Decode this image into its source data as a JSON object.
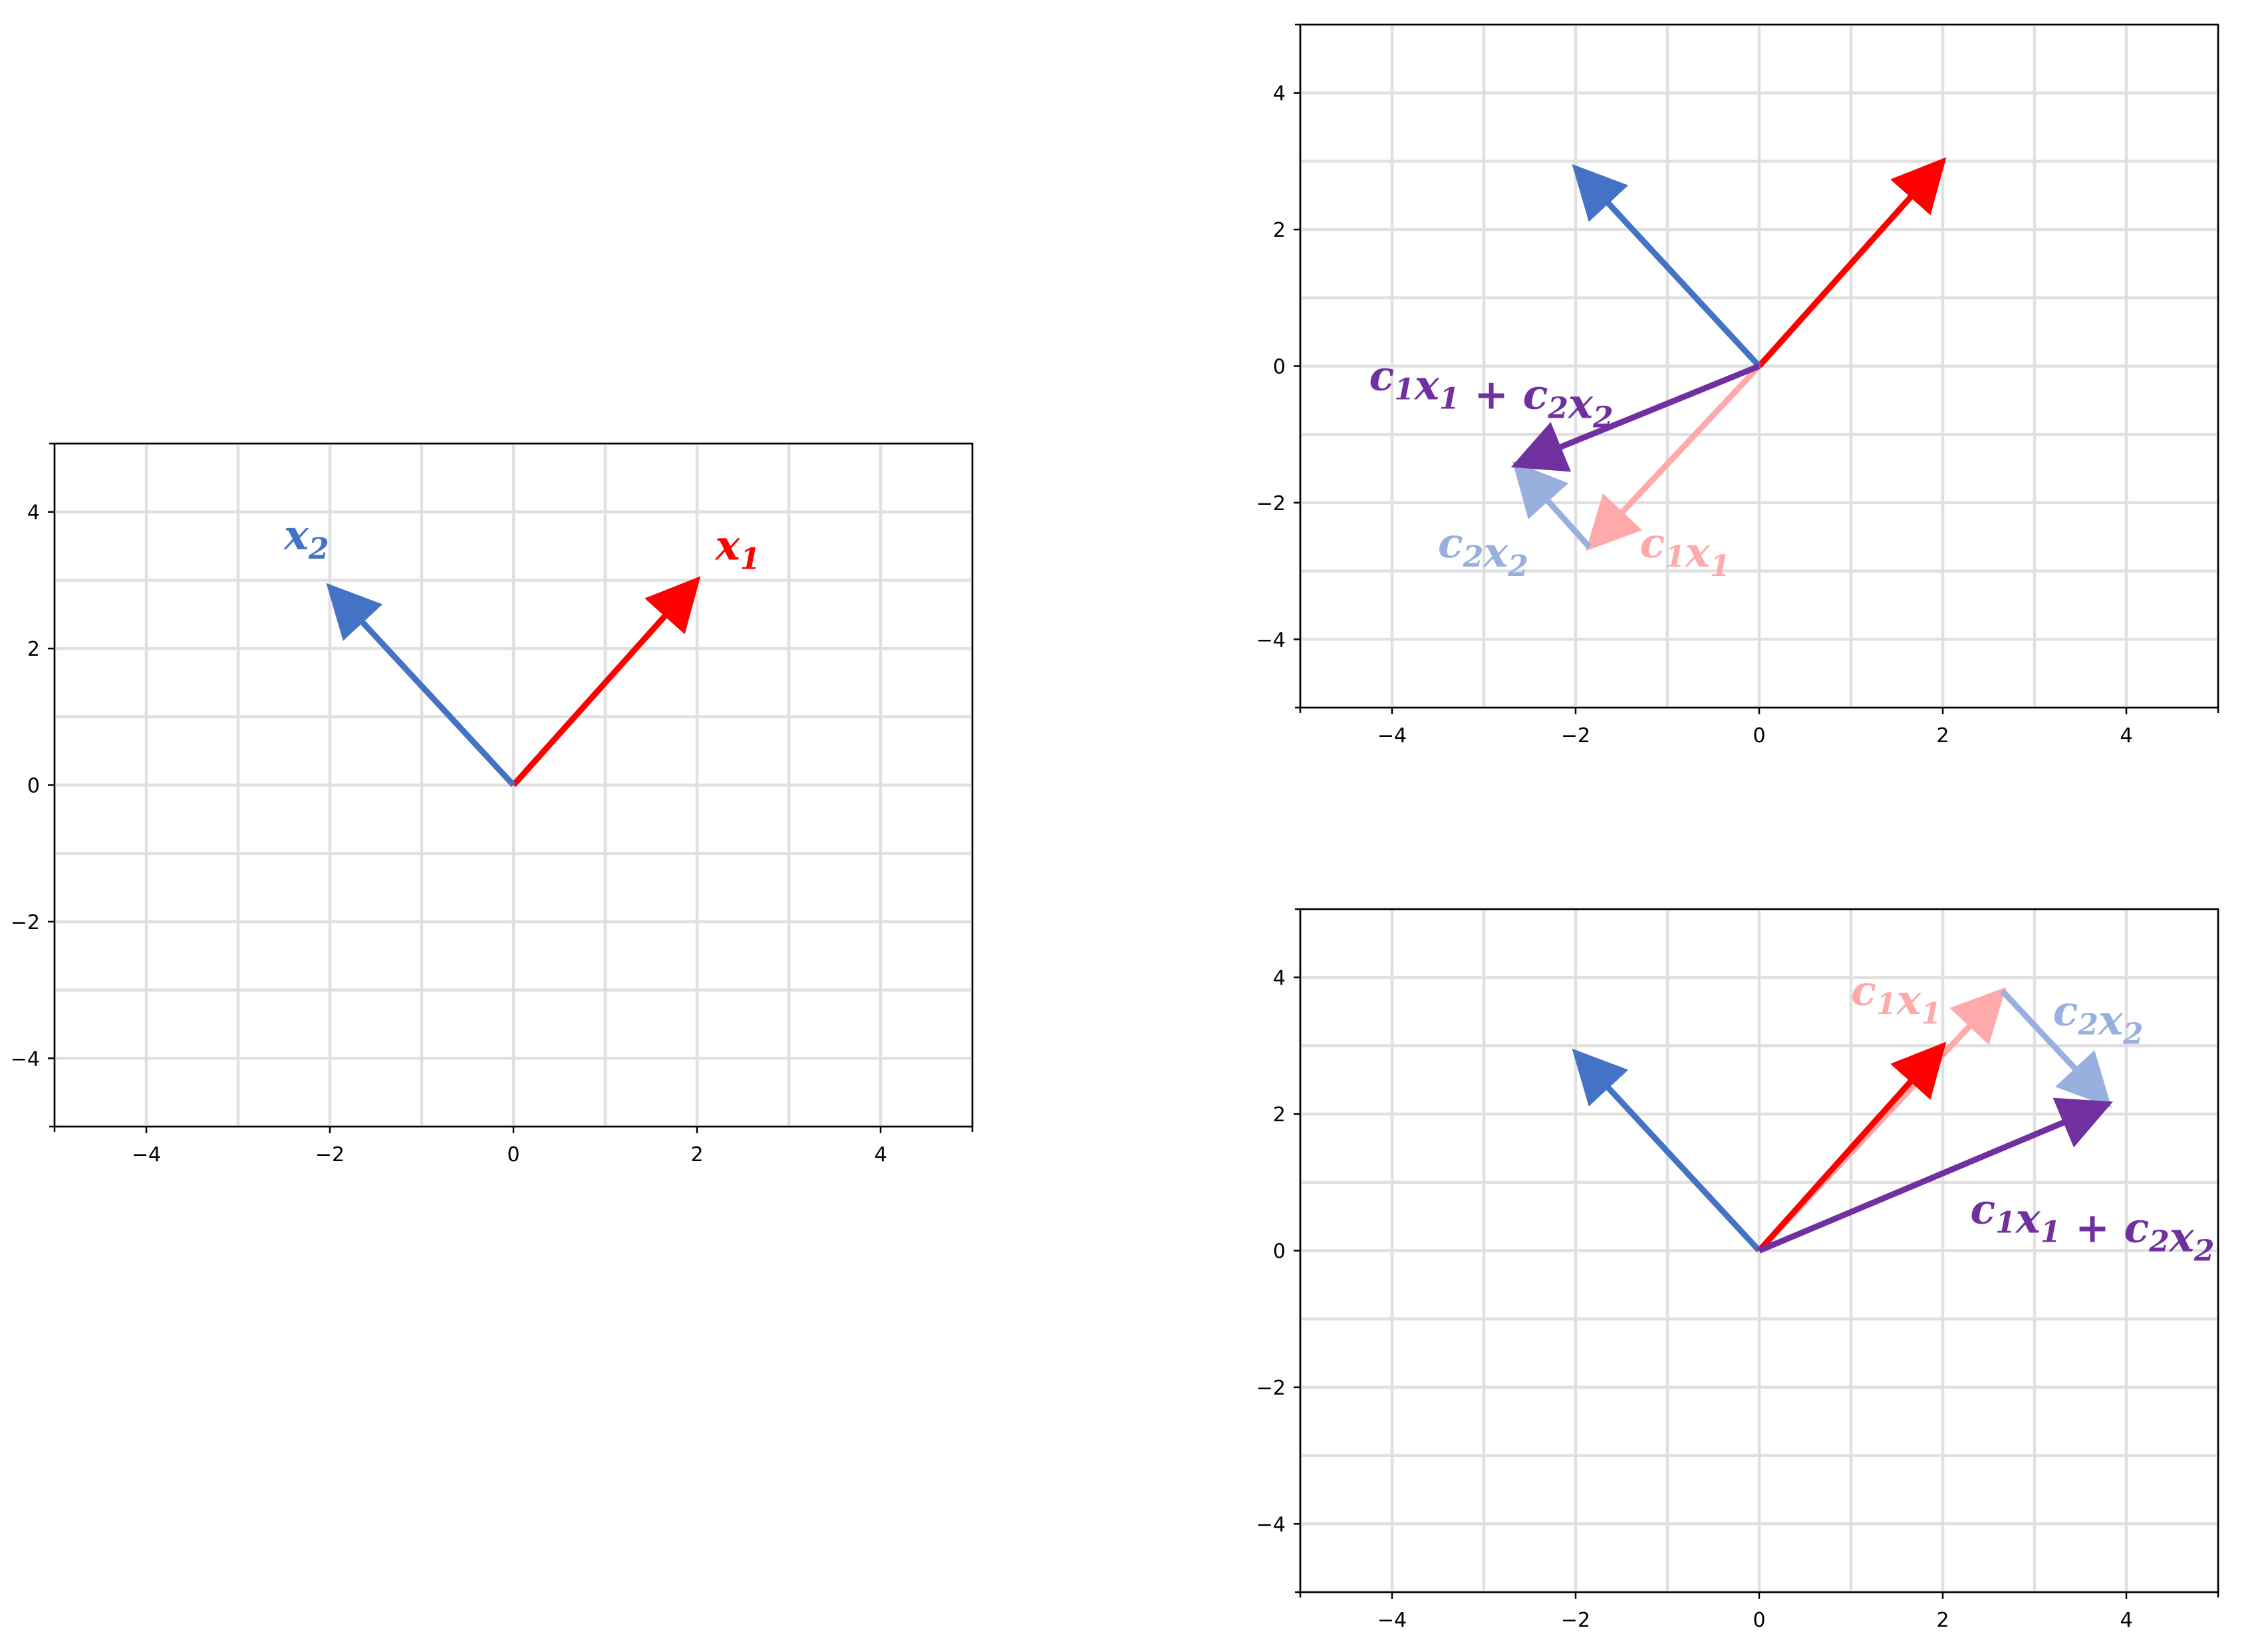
{
  "chart_data": [
    {
      "type": "vector",
      "xlim": [
        -5,
        5
      ],
      "ylim": [
        -5,
        5
      ],
      "xticks": [
        -4,
        -2,
        0,
        2,
        4
      ],
      "yticks": [
        -4,
        -2,
        0,
        2,
        4
      ],
      "grid": true,
      "vectors": [
        {
          "name": "x1",
          "from": [
            0,
            0
          ],
          "to": [
            2,
            3
          ],
          "color": "#ff0000"
        },
        {
          "name": "x2",
          "from": [
            0,
            0
          ],
          "to": [
            -2,
            2.9
          ],
          "color": "#4472c4"
        }
      ],
      "labels": [
        {
          "parts": [
            [
              "x",
              "base"
            ],
            [
              "1",
              "sub"
            ]
          ],
          "at": [
            2.2,
            3.3
          ],
          "color": "#ff0000"
        },
        {
          "parts": [
            [
              "x",
              "base"
            ],
            [
              "2",
              "sub"
            ]
          ],
          "at": [
            -2.5,
            3.45
          ],
          "color": "#4472c4"
        }
      ]
    },
    {
      "type": "vector",
      "xlim": [
        -5,
        5
      ],
      "ylim": [
        -5,
        5
      ],
      "xticks": [
        -4,
        -2,
        0,
        2,
        4
      ],
      "yticks": [
        -4,
        -2,
        0,
        2,
        4
      ],
      "grid": true,
      "vectors": [
        {
          "name": "x1",
          "from": [
            0,
            0
          ],
          "to": [
            2,
            3
          ],
          "color": "#ff0000"
        },
        {
          "name": "x2",
          "from": [
            0,
            0
          ],
          "to": [
            -2,
            2.9
          ],
          "color": "#4472c4"
        },
        {
          "name": "c1x1",
          "from": [
            0,
            0
          ],
          "to": [
            -1.85,
            -2.65
          ],
          "color": "#ffaaaa"
        },
        {
          "name": "c2x2",
          "from": [
            -1.85,
            -2.65
          ],
          "to": [
            -2.65,
            -1.45
          ],
          "color": "#99b0de"
        },
        {
          "name": "c1x1+c2x2",
          "from": [
            0,
            0
          ],
          "to": [
            -2.65,
            -1.45
          ],
          "color": "#7030a0"
        }
      ],
      "labels": [
        {
          "parts": [
            [
              "c",
              "base"
            ],
            [
              "1",
              "sub"
            ],
            [
              "x",
              "base"
            ],
            [
              "1",
              "sub"
            ],
            [
              " + ",
              "op"
            ],
            [
              "c",
              "base"
            ],
            [
              "2",
              "sub"
            ],
            [
              "x",
              "base"
            ],
            [
              "2",
              "sub"
            ]
          ],
          "at": [
            -4.25,
            -0.35
          ],
          "color": "#7030a0"
        },
        {
          "parts": [
            [
              "c",
              "base"
            ],
            [
              "2",
              "sub"
            ],
            [
              "x",
              "base"
            ],
            [
              "2",
              "sub"
            ]
          ],
          "at": [
            -3.5,
            -2.8
          ],
          "color": "#99b0de"
        },
        {
          "parts": [
            [
              "c",
              "base"
            ],
            [
              "1",
              "sub"
            ],
            [
              "x",
              "base"
            ],
            [
              "1",
              "sub"
            ]
          ],
          "at": [
            -1.3,
            -2.8
          ],
          "color": "#ffaaaa"
        }
      ]
    },
    {
      "type": "vector",
      "xlim": [
        -5,
        5
      ],
      "ylim": [
        -5,
        5
      ],
      "xticks": [
        -4,
        -2,
        0,
        2,
        4
      ],
      "yticks": [
        -4,
        -2,
        0,
        2,
        4
      ],
      "grid": true,
      "vectors": [
        {
          "name": "x2",
          "from": [
            0,
            0
          ],
          "to": [
            -2,
            2.9
          ],
          "color": "#4472c4"
        },
        {
          "name": "c1x1",
          "from": [
            0,
            0
          ],
          "to": [
            2.65,
            3.8
          ],
          "color": "#ffaaaa"
        },
        {
          "name": "x1",
          "from": [
            0,
            0
          ],
          "to": [
            2,
            3
          ],
          "color": "#ff0000"
        },
        {
          "name": "c2x2",
          "from": [
            2.65,
            3.8
          ],
          "to": [
            3.8,
            2.15
          ],
          "color": "#99b0de"
        },
        {
          "name": "c1x1+c2x2",
          "from": [
            0,
            0
          ],
          "to": [
            3.8,
            2.15
          ],
          "color": "#7030a0"
        }
      ],
      "labels": [
        {
          "parts": [
            [
              "c",
              "base"
            ],
            [
              "1",
              "sub"
            ],
            [
              "x",
              "base"
            ],
            [
              "1",
              "sub"
            ]
          ],
          "at": [
            1.0,
            3.6
          ],
          "color": "#ffaaaa"
        },
        {
          "parts": [
            [
              "c",
              "base"
            ],
            [
              "2",
              "sub"
            ],
            [
              "x",
              "base"
            ],
            [
              "2",
              "sub"
            ]
          ],
          "at": [
            3.2,
            3.3
          ],
          "color": "#99b0de"
        },
        {
          "parts": [
            [
              "c",
              "base"
            ],
            [
              "1",
              "sub"
            ],
            [
              "x",
              "base"
            ],
            [
              "1",
              "sub"
            ],
            [
              " + ",
              "op"
            ],
            [
              "c",
              "base"
            ],
            [
              "2",
              "sub"
            ],
            [
              "x",
              "base"
            ],
            [
              "2",
              "sub"
            ]
          ],
          "at": [
            2.3,
            0.4
          ],
          "color": "#7030a0"
        }
      ]
    }
  ]
}
